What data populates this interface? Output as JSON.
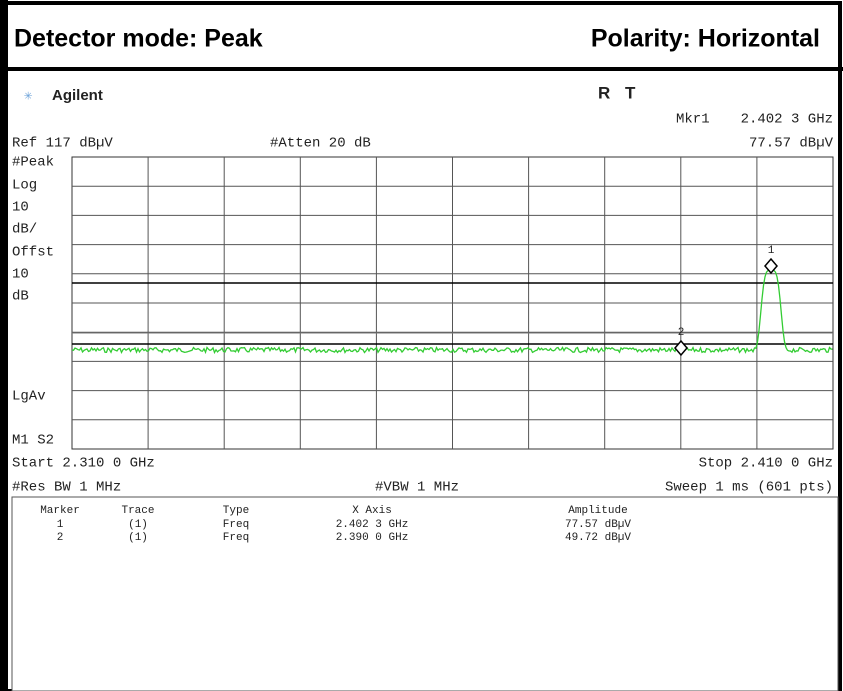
{
  "header": {
    "detector": "Detector mode: Peak",
    "polarity": "Polarity: Horizontal"
  },
  "screen": {
    "brand": "Agilent",
    "status": [
      "R",
      "T"
    ],
    "marker_readout": {
      "label": "Mkr1",
      "frequency": "2.402 3 GHz",
      "amplitude": "77.57 dBµV"
    },
    "reference": "Ref 117 dBµV",
    "attenuation": "#Atten 20 dB",
    "side_labels": [
      "#Peak",
      "Log",
      "10",
      "dB/",
      "Offst",
      "10",
      "dB",
      "LgAv",
      "M1 S2"
    ],
    "trace_markers": [
      "1",
      "2"
    ],
    "start": "Start 2.310 0 GHz",
    "stop": "Stop 2.410 0 GHz",
    "res_bw": "#Res BW 1 MHz",
    "vbw": "#VBW 1 MHz",
    "sweep": "Sweep 1 ms (601 pts)"
  },
  "table": {
    "headers": [
      "Marker",
      "Trace",
      "Type",
      "X Axis",
      "Amplitude"
    ],
    "rows": [
      [
        "1",
        "(1)",
        "Freq",
        "2.402 3 GHz",
        "77.57 dBµV"
      ],
      [
        "2",
        "(1)",
        "Freq",
        "2.390 0 GHz",
        "49.72 dBµV"
      ]
    ]
  }
}
